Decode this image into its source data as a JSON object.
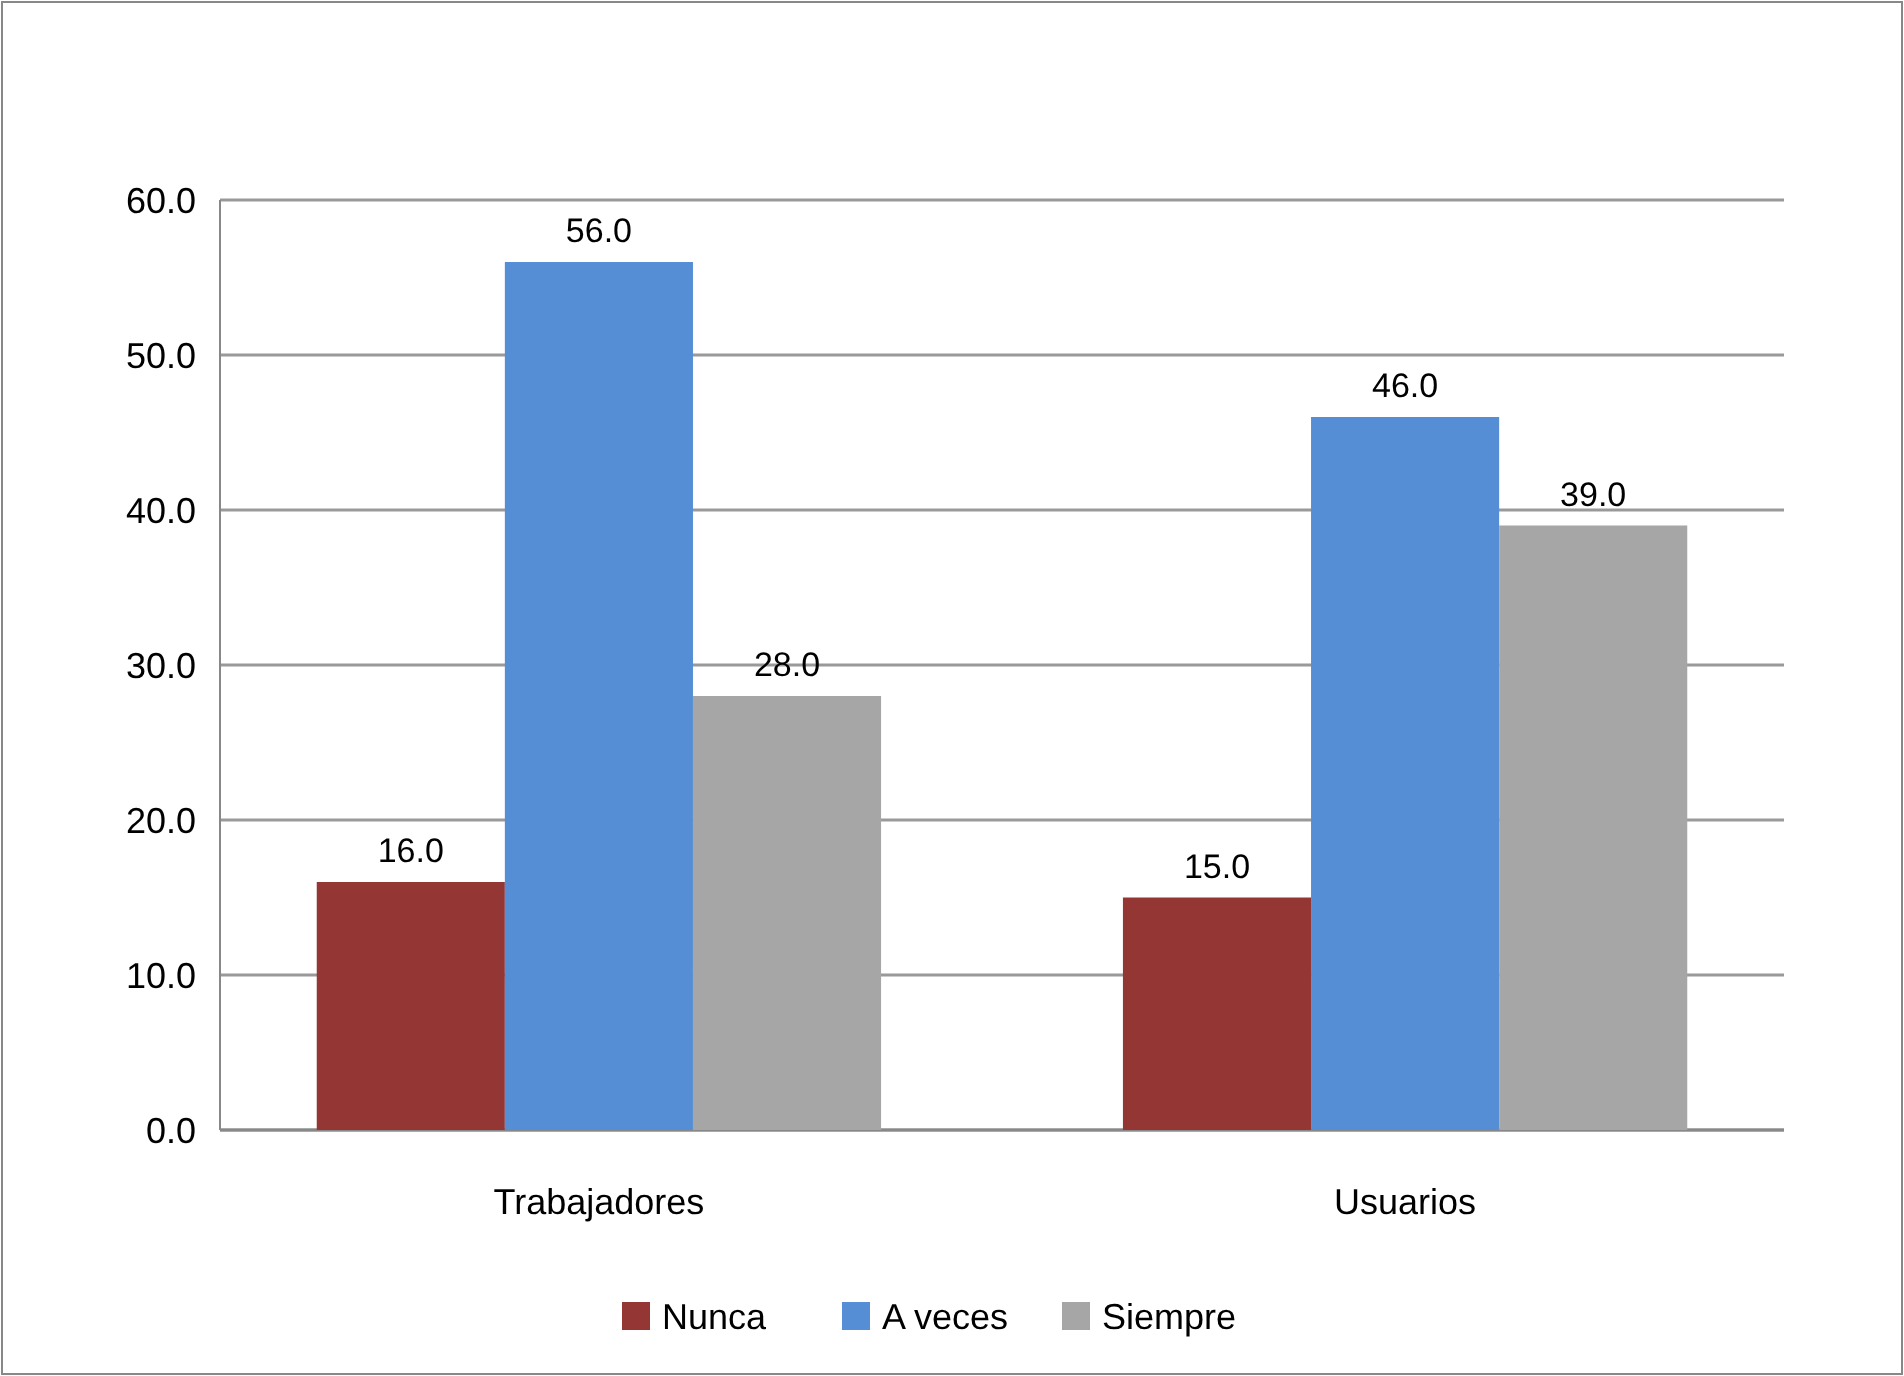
{
  "chart_data": {
    "type": "bar",
    "categories": [
      "Trabajadores",
      "Usuarios"
    ],
    "series": [
      {
        "name": "Nunca",
        "color": "#943634",
        "values": [
          16,
          15
        ],
        "value_labels": [
          "16.0",
          "15.0"
        ]
      },
      {
        "name": "A veces",
        "color": "#558ed5",
        "values": [
          56,
          46
        ],
        "value_labels": [
          "56.0",
          "46.0"
        ]
      },
      {
        "name": "Siempre",
        "color": "#a6a6a6",
        "values": [
          28,
          39
        ],
        "value_labels": [
          "28.0",
          "39.0"
        ]
      }
    ],
    "ylim": [
      0,
      60
    ],
    "yticks": [
      {
        "value": 0,
        "label": "0.0"
      },
      {
        "value": 10,
        "label": "10.0"
      },
      {
        "value": 20,
        "label": "20.0"
      },
      {
        "value": 30,
        "label": "30.0"
      },
      {
        "value": 40,
        "label": "40.0"
      },
      {
        "value": 50,
        "label": "50.0"
      },
      {
        "value": 60,
        "label": "60.0"
      }
    ],
    "grid": "y",
    "legend": "bottom"
  }
}
